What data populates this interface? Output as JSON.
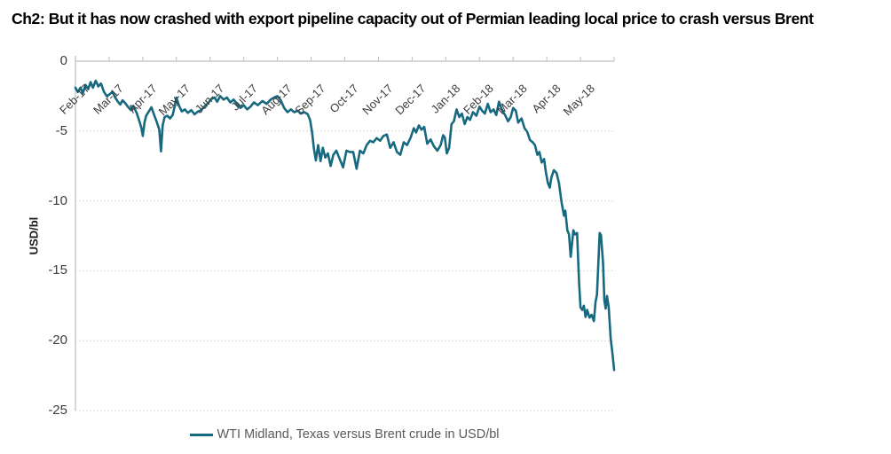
{
  "chart_data": {
    "type": "line",
    "title": "Ch2: But it has now crashed with export pipeline capacity out of Permian leading local price to crash versus Brent",
    "ylabel": "USD/bl",
    "xlabel": "",
    "ylim": [
      -25,
      0
    ],
    "yticks": [
      0,
      -5,
      -10,
      -15,
      -20,
      -25
    ],
    "ytick_labels": [
      "0",
      "-5",
      "-10",
      "-15",
      "-20",
      "-25"
    ],
    "x_tick_labels": [
      "Feb-17",
      "Mar-17",
      "Apr-17",
      "May-17",
      "Jun-17",
      "Jul-17",
      "Aug-17",
      "Sep-17",
      "Oct-17",
      "Nov-17",
      "Dec-17",
      "Jan-18",
      "Feb-18",
      "Mar-18",
      "Apr-18",
      "May-18"
    ],
    "x_axis_note": "points use fractional months since 1-Feb-2017 (0 = Feb-17, 16 = end May-18)",
    "grid": "horizontal dotted gridlines, x-axis drawn at 0 (top) with ticks",
    "legend_position": "bottom-center",
    "colors": {
      "line": "#16697E",
      "axis": "#BFBFBF",
      "grid": "#CFCFCF",
      "tick_text": "#3C3C3C",
      "legend_text": "#595959",
      "title_text": "#000000"
    },
    "series": [
      {
        "name": "WTI Midland, Texas versus Brent crude in USD/bl",
        "color": "#16697E",
        "points": [
          [
            0.0,
            -1.9
          ],
          [
            0.07,
            -2.2
          ],
          [
            0.15,
            -1.9
          ],
          [
            0.22,
            -2.3
          ],
          [
            0.3,
            -1.7
          ],
          [
            0.38,
            -2.0
          ],
          [
            0.45,
            -1.5
          ],
          [
            0.52,
            -1.9
          ],
          [
            0.6,
            -1.4
          ],
          [
            0.68,
            -1.8
          ],
          [
            0.76,
            -1.6
          ],
          [
            0.85,
            -2.2
          ],
          [
            0.93,
            -2.5
          ],
          [
            1.0,
            -2.4
          ],
          [
            1.1,
            -2.2
          ],
          [
            1.18,
            -2.6
          ],
          [
            1.26,
            -2.9
          ],
          [
            1.33,
            -3.1
          ],
          [
            1.4,
            -2.8
          ],
          [
            1.48,
            -3.0
          ],
          [
            1.57,
            -3.3
          ],
          [
            1.65,
            -3.5
          ],
          [
            1.72,
            -3.2
          ],
          [
            1.82,
            -3.7
          ],
          [
            1.9,
            -4.3
          ],
          [
            1.96,
            -4.8
          ],
          [
            2.0,
            -5.35
          ],
          [
            2.05,
            -4.4
          ],
          [
            2.1,
            -3.9
          ],
          [
            2.18,
            -3.6
          ],
          [
            2.26,
            -3.3
          ],
          [
            2.33,
            -3.8
          ],
          [
            2.41,
            -4.3
          ],
          [
            2.49,
            -4.9
          ],
          [
            2.54,
            -6.45
          ],
          [
            2.59,
            -4.6
          ],
          [
            2.65,
            -4.0
          ],
          [
            2.73,
            -3.9
          ],
          [
            2.81,
            -4.1
          ],
          [
            2.89,
            -3.85
          ],
          [
            2.95,
            -3.2
          ],
          [
            3.0,
            -2.6
          ],
          [
            3.08,
            -3.2
          ],
          [
            3.16,
            -3.6
          ],
          [
            3.25,
            -3.45
          ],
          [
            3.34,
            -3.7
          ],
          [
            3.44,
            -3.5
          ],
          [
            3.54,
            -3.8
          ],
          [
            3.64,
            -3.6
          ],
          [
            3.74,
            -3.5
          ],
          [
            3.85,
            -3.2
          ],
          [
            3.94,
            -3.0
          ],
          [
            4.04,
            -2.7
          ],
          [
            4.13,
            -2.6
          ],
          [
            4.21,
            -2.9
          ],
          [
            4.3,
            -2.5
          ],
          [
            4.4,
            -2.75
          ],
          [
            4.5,
            -2.6
          ],
          [
            4.6,
            -2.95
          ],
          [
            4.7,
            -2.75
          ],
          [
            4.8,
            -3.05
          ],
          [
            4.9,
            -3.35
          ],
          [
            5.0,
            -3.15
          ],
          [
            5.1,
            -3.45
          ],
          [
            5.2,
            -3.25
          ],
          [
            5.3,
            -2.95
          ],
          [
            5.42,
            -3.15
          ],
          [
            5.55,
            -2.85
          ],
          [
            5.68,
            -3.05
          ],
          [
            5.8,
            -2.75
          ],
          [
            5.9,
            -2.6
          ],
          [
            6.0,
            -2.5
          ],
          [
            6.1,
            -2.8
          ],
          [
            6.2,
            -3.35
          ],
          [
            6.3,
            -3.65
          ],
          [
            6.4,
            -3.45
          ],
          [
            6.5,
            -3.65
          ],
          [
            6.6,
            -3.55
          ],
          [
            6.7,
            -3.75
          ],
          [
            6.8,
            -3.65
          ],
          [
            6.9,
            -3.8
          ],
          [
            6.97,
            -4.2
          ],
          [
            7.03,
            -5.1
          ],
          [
            7.08,
            -6.2
          ],
          [
            7.14,
            -7.1
          ],
          [
            7.21,
            -6.0
          ],
          [
            7.28,
            -7.15
          ],
          [
            7.35,
            -6.2
          ],
          [
            7.42,
            -6.9
          ],
          [
            7.5,
            -6.6
          ],
          [
            7.58,
            -7.5
          ],
          [
            7.66,
            -6.7
          ],
          [
            7.75,
            -6.4
          ],
          [
            7.85,
            -7.0
          ],
          [
            7.95,
            -7.6
          ],
          [
            8.05,
            -6.4
          ],
          [
            8.15,
            -6.5
          ],
          [
            8.25,
            -6.5
          ],
          [
            8.35,
            -7.7
          ],
          [
            8.45,
            -6.4
          ],
          [
            8.55,
            -6.6
          ],
          [
            8.65,
            -6.0
          ],
          [
            8.75,
            -5.7
          ],
          [
            8.85,
            -5.8
          ],
          [
            8.95,
            -5.5
          ],
          [
            9.05,
            -5.7
          ],
          [
            9.15,
            -5.35
          ],
          [
            9.25,
            -5.25
          ],
          [
            9.35,
            -6.2
          ],
          [
            9.45,
            -5.8
          ],
          [
            9.55,
            -6.5
          ],
          [
            9.65,
            -6.7
          ],
          [
            9.75,
            -5.8
          ],
          [
            9.85,
            -6.0
          ],
          [
            9.95,
            -5.5
          ],
          [
            10.05,
            -4.8
          ],
          [
            10.12,
            -5.1
          ],
          [
            10.2,
            -4.6
          ],
          [
            10.28,
            -4.9
          ],
          [
            10.36,
            -4.7
          ],
          [
            10.45,
            -5.9
          ],
          [
            10.55,
            -5.6
          ],
          [
            10.65,
            -6.1
          ],
          [
            10.75,
            -6.4
          ],
          [
            10.85,
            -6.0
          ],
          [
            10.92,
            -5.3
          ],
          [
            10.97,
            -5.45
          ],
          [
            11.03,
            -6.6
          ],
          [
            11.1,
            -6.2
          ],
          [
            11.17,
            -4.5
          ],
          [
            11.24,
            -4.3
          ],
          [
            11.32,
            -3.45
          ],
          [
            11.4,
            -4.0
          ],
          [
            11.48,
            -3.75
          ],
          [
            11.56,
            -4.5
          ],
          [
            11.64,
            -4.0
          ],
          [
            11.72,
            -4.2
          ],
          [
            11.81,
            -3.65
          ],
          [
            11.91,
            -3.9
          ],
          [
            12.0,
            -3.25
          ],
          [
            12.08,
            -3.55
          ],
          [
            12.16,
            -3.75
          ],
          [
            12.25,
            -3.05
          ],
          [
            12.33,
            -3.65
          ],
          [
            12.42,
            -3.45
          ],
          [
            12.5,
            -3.85
          ],
          [
            12.58,
            -2.9
          ],
          [
            12.67,
            -3.5
          ],
          [
            12.76,
            -3.85
          ],
          [
            12.85,
            -4.3
          ],
          [
            12.93,
            -4.0
          ],
          [
            13.0,
            -3.35
          ],
          [
            13.08,
            -3.55
          ],
          [
            13.15,
            -4.4
          ],
          [
            13.25,
            -4.1
          ],
          [
            13.34,
            -4.8
          ],
          [
            13.42,
            -5.05
          ],
          [
            13.5,
            -5.65
          ],
          [
            13.58,
            -5.8
          ],
          [
            13.65,
            -6.0
          ],
          [
            13.72,
            -6.7
          ],
          [
            13.78,
            -6.5
          ],
          [
            13.85,
            -7.25
          ],
          [
            13.92,
            -7.0
          ],
          [
            13.97,
            -7.9
          ],
          [
            14.03,
            -8.7
          ],
          [
            14.09,
            -9.05
          ],
          [
            14.14,
            -8.3
          ],
          [
            14.21,
            -7.8
          ],
          [
            14.29,
            -8.0
          ],
          [
            14.36,
            -8.7
          ],
          [
            14.44,
            -10.1
          ],
          [
            14.51,
            -11.05
          ],
          [
            14.55,
            -10.7
          ],
          [
            14.61,
            -12.1
          ],
          [
            14.66,
            -12.4
          ],
          [
            14.71,
            -14.0
          ],
          [
            14.79,
            -12.1
          ],
          [
            14.84,
            -12.4
          ],
          [
            14.9,
            -12.3
          ],
          [
            14.96,
            -15.8
          ],
          [
            15.0,
            -17.6
          ],
          [
            15.05,
            -17.8
          ],
          [
            15.1,
            -17.5
          ],
          [
            15.15,
            -18.3
          ],
          [
            15.2,
            -17.8
          ],
          [
            15.27,
            -18.35
          ],
          [
            15.33,
            -18.15
          ],
          [
            15.4,
            -18.6
          ],
          [
            15.45,
            -17.2
          ],
          [
            15.49,
            -16.7
          ],
          [
            15.57,
            -12.3
          ],
          [
            15.61,
            -12.45
          ],
          [
            15.67,
            -14.4
          ],
          [
            15.71,
            -17.1
          ],
          [
            15.75,
            -17.7
          ],
          [
            15.79,
            -16.8
          ],
          [
            15.84,
            -17.6
          ],
          [
            15.9,
            -19.9
          ],
          [
            15.95,
            -20.9
          ],
          [
            16.0,
            -22.1
          ]
        ]
      }
    ]
  }
}
